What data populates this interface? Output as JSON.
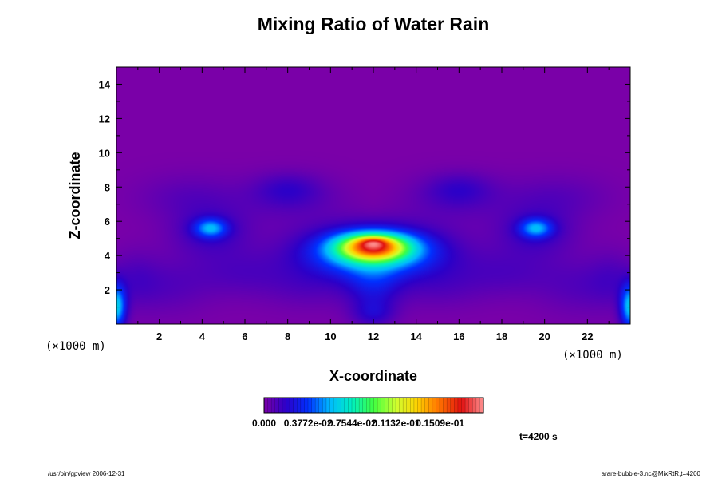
{
  "chart_data": {
    "type": "heatmap",
    "title": "Mixing Ratio of Water Rain",
    "xlabel": "X-coordinate",
    "ylabel": "Z-coordinate",
    "x_unit_label": "(×1000 m)",
    "z_unit_label": "(×1000 m)",
    "xlim": [
      0,
      24
    ],
    "ylim": [
      0,
      15
    ],
    "x_ticks": [
      2,
      4,
      6,
      8,
      10,
      12,
      14,
      16,
      18,
      20,
      22
    ],
    "y_ticks": [
      2,
      4,
      6,
      8,
      10,
      12,
      14
    ],
    "colorbar": {
      "min": 0,
      "max": 0.0188,
      "labels": [
        "0.000",
        "0.3772e-02",
        "0.7544e-02",
        "0.1132e-01",
        "0.1509e-01"
      ],
      "colors": [
        "#7a00a8",
        "#2c00c8",
        "#0030ff",
        "#00b8ff",
        "#00f0c0",
        "#40ff40",
        "#d0ff30",
        "#ffd000",
        "#ff7000",
        "#e01010",
        "#ff9090"
      ]
    },
    "features": [
      {
        "feature": "central core",
        "x": 12.0,
        "z": 4.2,
        "max_value": 0.0165
      },
      {
        "feature": "left side lobe",
        "x": 4.4,
        "z": 5.6,
        "max_value": 0.0045
      },
      {
        "feature": "right side lobe",
        "x": 19.6,
        "z": 5.6,
        "max_value": 0.0045
      },
      {
        "feature": "left upper lobe",
        "x": 8.0,
        "z": 7.9,
        "max_value": 0.0018
      },
      {
        "feature": "right upper lobe",
        "x": 16.0,
        "z": 7.9,
        "max_value": 0.0018
      },
      {
        "feature": "left edge",
        "x": 0.0,
        "z": 1.2,
        "max_value": 0.006
      },
      {
        "feature": "right edge",
        "x": 24.0,
        "z": 1.2,
        "max_value": 0.006
      }
    ],
    "time_label": "t=4200 s"
  },
  "footer": {
    "left": "/usr/bin/gpview 2006-12-31",
    "right": "arare-bubble-3.nc@MixRtR,t=4200"
  }
}
